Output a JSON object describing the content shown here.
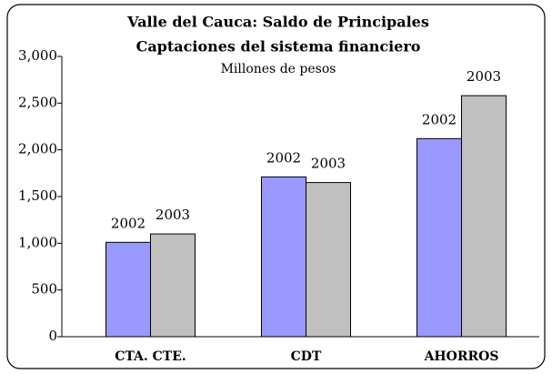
{
  "chart_data": {
    "type": "bar",
    "title": [
      "Valle del Cauca: Saldo de Principales",
      "Captaciones del sistema financiero"
    ],
    "subtitle": "Millones de pesos",
    "categories": [
      "CTA. CTE.",
      "CDT",
      "AHORROS"
    ],
    "series": [
      {
        "name": "2002",
        "color": "#9999ff",
        "values": [
          1010,
          1710,
          2120
        ]
      },
      {
        "name": "2003",
        "color": "#c0c0c0",
        "values": [
          1100,
          1650,
          2580
        ]
      }
    ],
    "ylim": [
      0,
      3000
    ],
    "yticks": [
      0,
      500,
      {
        "value": 1000,
        "label": "1,000"
      },
      {
        "value": 1500,
        "label": "1,500"
      },
      {
        "value": 2000,
        "label": "2,000"
      },
      {
        "value": 2500,
        "label": "2,500"
      },
      {
        "value": 3000,
        "label": "3,000"
      }
    ],
    "grid": false
  }
}
